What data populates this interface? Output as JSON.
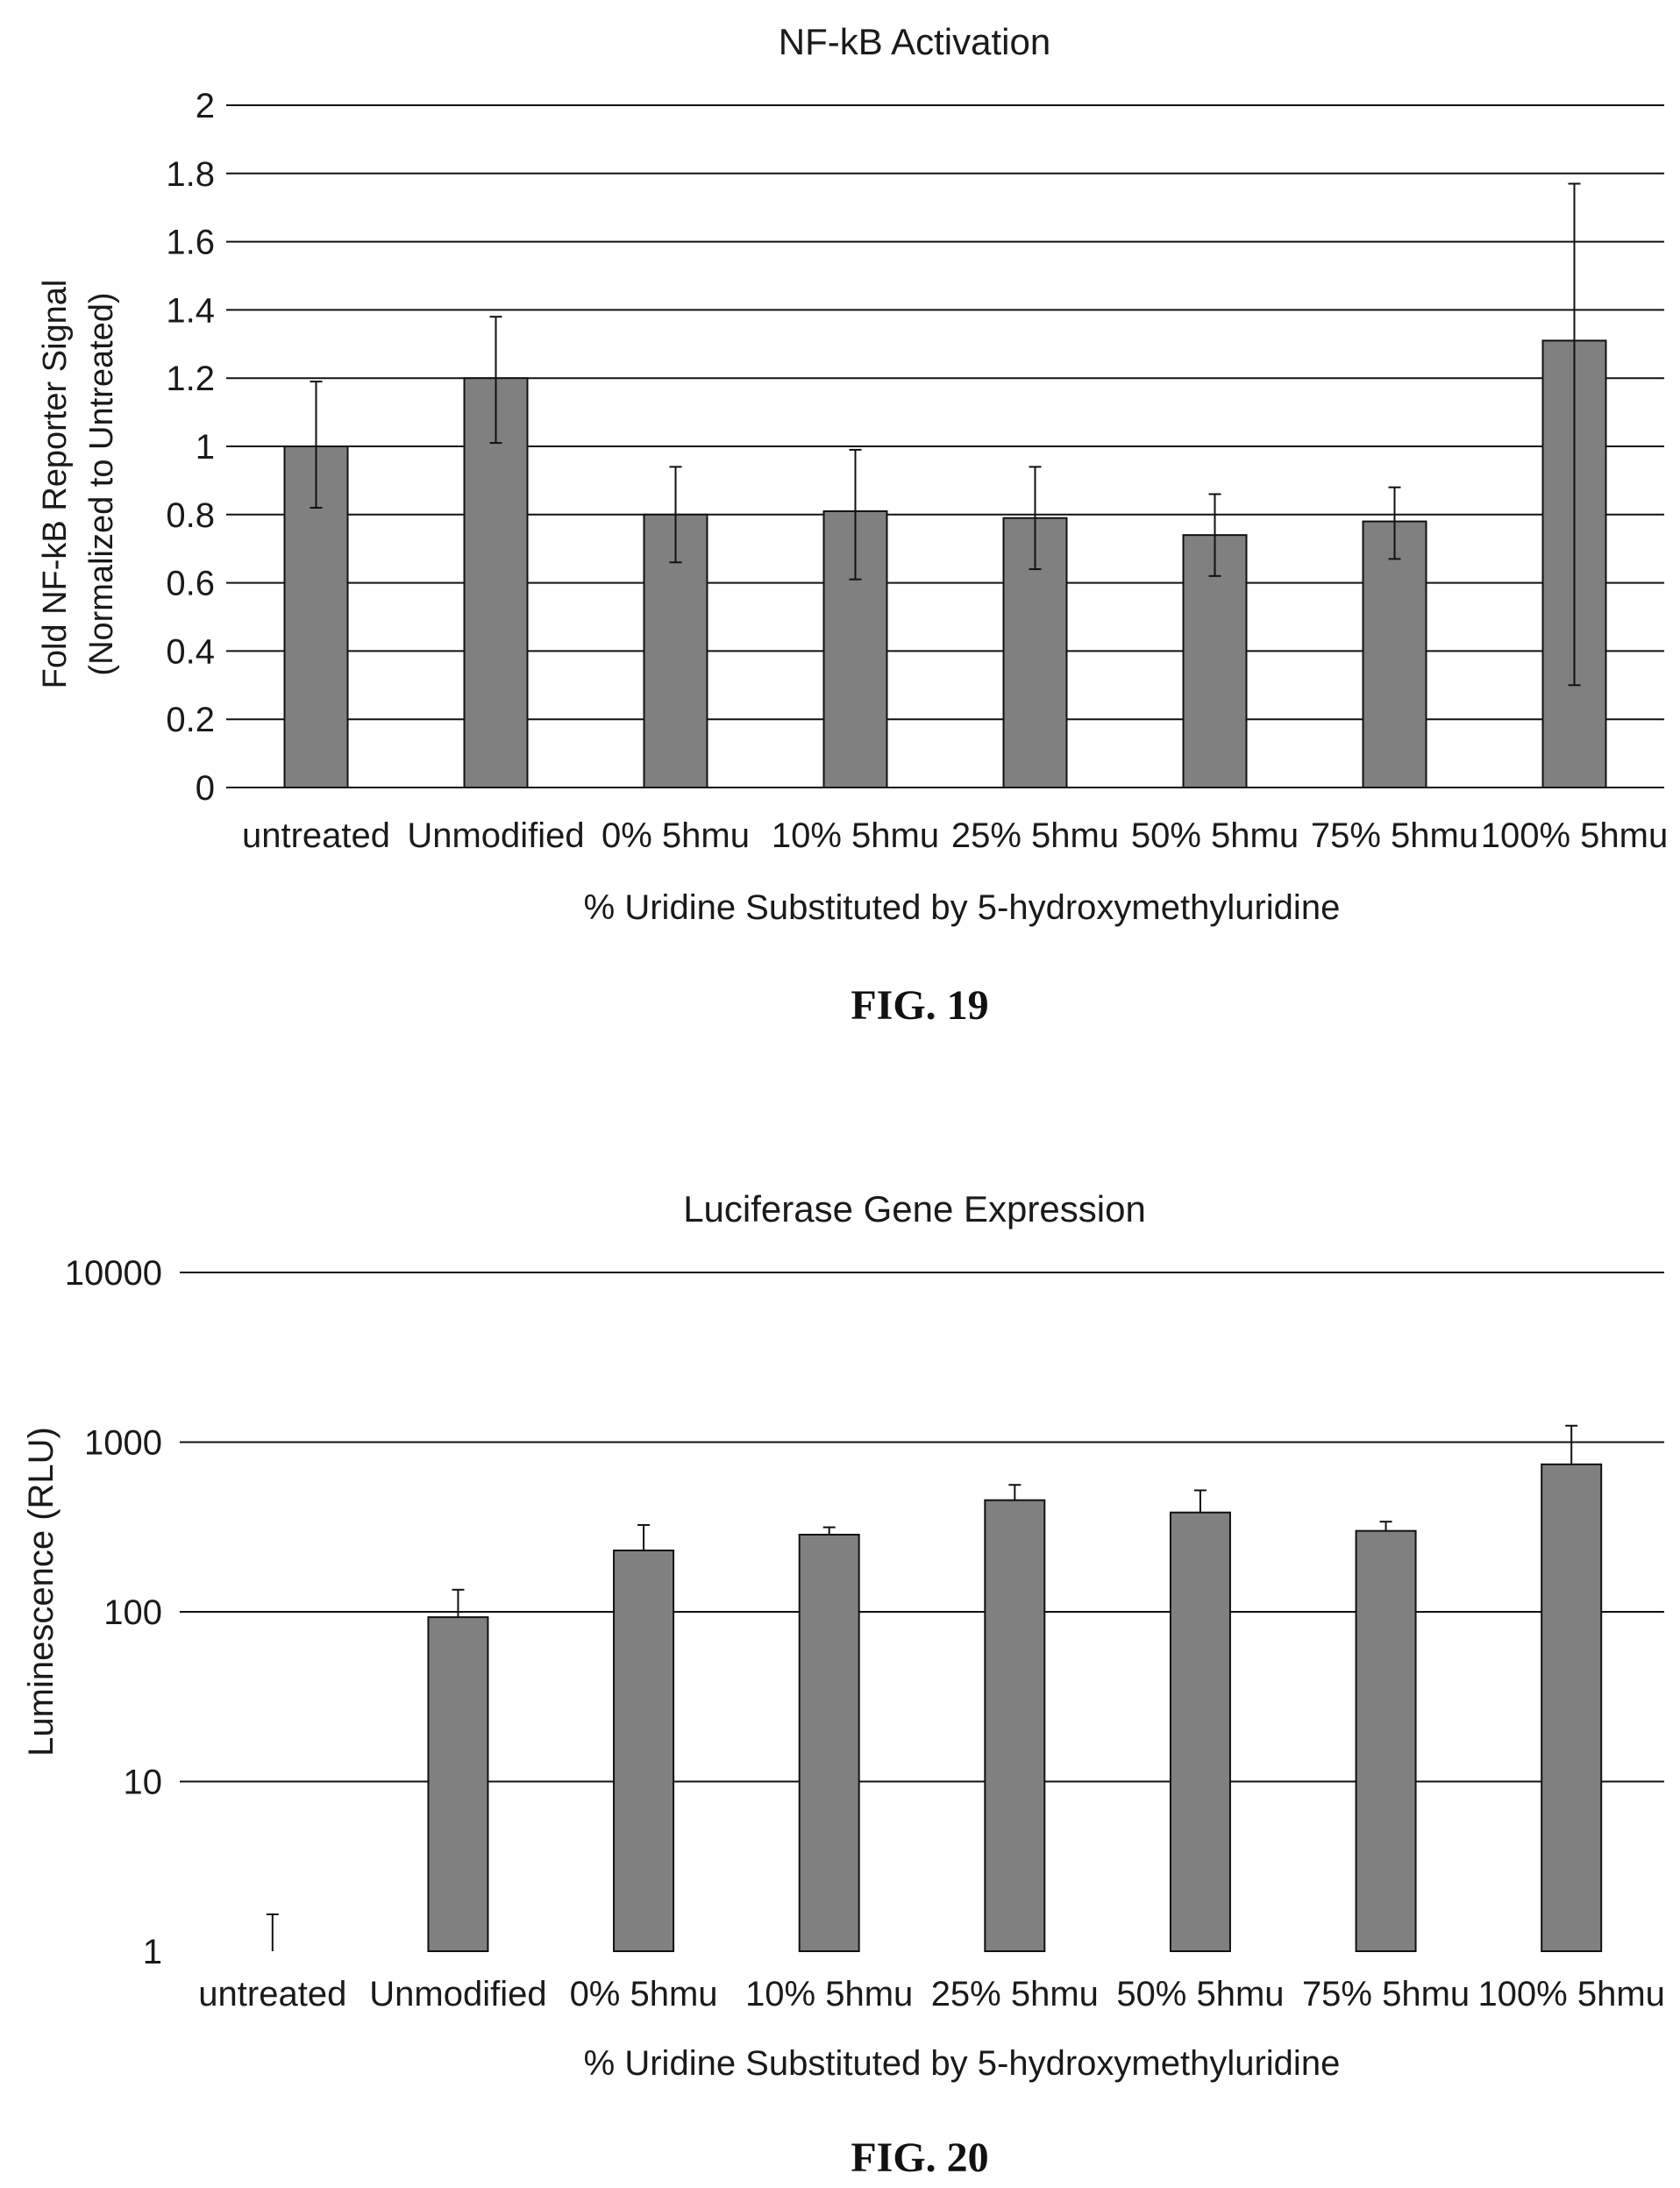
{
  "figures": [
    {
      "caption": "FIG. 19"
    },
    {
      "caption": "FIG. 20"
    }
  ],
  "colors": {
    "bar_fill": "#808080",
    "bar_stroke": "#111111",
    "grid": "#111111",
    "text": "#1a1a1a"
  },
  "chart_data": [
    {
      "type": "bar",
      "title": "NF-kB Activation",
      "xlabel": "% Uridine Substituted by 5-hydroxymethyluridine",
      "ylabel": [
        "Fold NF-kB Reporter Signal",
        "(Normalized to Untreated)"
      ],
      "scale": "linear",
      "ylim": [
        0,
        2
      ],
      "yticks": [
        0,
        0.2,
        0.4,
        0.6,
        0.8,
        1,
        1.2,
        1.4,
        1.6,
        1.8,
        2
      ],
      "ytick_labels": [
        "0",
        "0.2",
        "0.4",
        "0.6",
        "0.8",
        "1",
        "1.2",
        "1.4",
        "1.6",
        "1.8",
        "2"
      ],
      "grid": true,
      "categories": [
        "untreated",
        "Unmodified",
        "0% 5hmu",
        "10% 5hmu",
        "25% 5hmu",
        "50% 5hmu",
        "75% 5hmu",
        "100% 5hmu"
      ],
      "values": [
        1.0,
        1.2,
        0.8,
        0.81,
        0.79,
        0.74,
        0.78,
        1.31
      ],
      "error_high": [
        1.19,
        1.38,
        0.94,
        0.99,
        0.94,
        0.86,
        0.88,
        1.77
      ],
      "error_low": [
        0.82,
        1.01,
        0.66,
        0.61,
        0.64,
        0.62,
        0.67,
        0.3
      ]
    },
    {
      "type": "bar",
      "title": "Luciferase Gene Expression",
      "xlabel": "% Uridine Substituted by 5-hydroxymethyluridine",
      "ylabel": [
        "Luminescence (RLU)"
      ],
      "scale": "log",
      "ylim": [
        1,
        10000
      ],
      "yticks": [
        1,
        10,
        100,
        1000,
        10000
      ],
      "ytick_labels": [
        "1",
        "10",
        "100",
        "1000",
        "10000"
      ],
      "grid": true,
      "categories": [
        "untreated",
        "Unmodified",
        "0% 5hmu",
        "10% 5hmu",
        "25% 5hmu",
        "50% 5hmu",
        "75% 5hmu",
        "100% 5hmu"
      ],
      "values": [
        1,
        93,
        230,
        285,
        455,
        385,
        300,
        740
      ],
      "error_high": [
        1.65,
        135,
        325,
        315,
        560,
        520,
        340,
        1250
      ],
      "error_low": [
        null,
        null,
        null,
        null,
        null,
        null,
        null,
        null
      ]
    }
  ]
}
